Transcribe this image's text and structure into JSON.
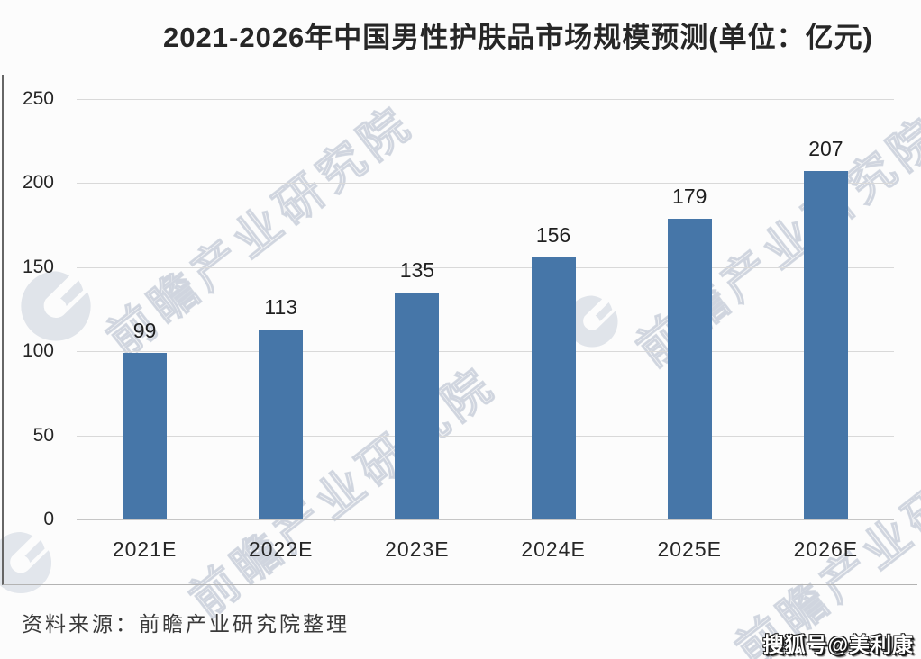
{
  "title": "2021-2026年中国男性护肤品市场规模预测(单位：亿元)",
  "chart_data": {
    "type": "bar",
    "title": "2021-2026年中国男性护肤品市场规模预测(单位：亿元)",
    "unit_label": "亿元",
    "categories": [
      "2021E",
      "2022E",
      "2023E",
      "2024E",
      "2025E",
      "2026E"
    ],
    "values": [
      99,
      113,
      135,
      156,
      179,
      207
    ],
    "xlabel": "",
    "ylabel": "",
    "ylim": [
      0,
      250
    ],
    "yticks": [
      0,
      50,
      100,
      150,
      200,
      250
    ],
    "grid": true,
    "legend": false,
    "bar_color": "#4676a8"
  },
  "watermark": {
    "text": "前瞻产业研究院",
    "logo": "qianzhan-swoosh-logo"
  },
  "footer": {
    "source": "资料来源：前瞻产业研究院整理",
    "publisher": "搜狐号@美利康"
  },
  "colors": {
    "bar": "#4676a8",
    "gridline": "#d9d9d9",
    "baseline": "#c6c6c6",
    "text": "#262626",
    "watermark_stroke": "#a3afc2"
  }
}
